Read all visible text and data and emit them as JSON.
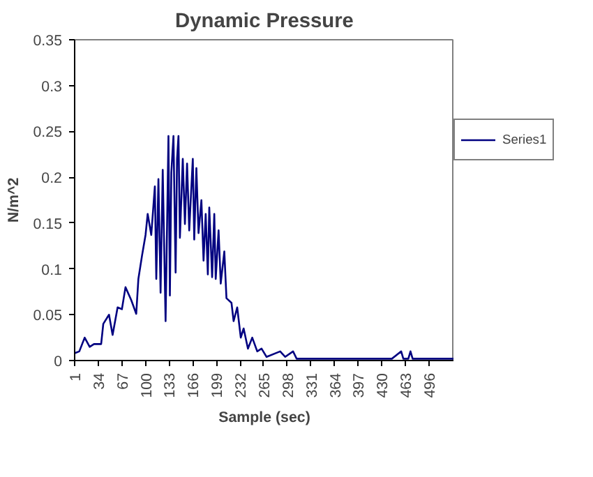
{
  "chart_data": {
    "type": "line",
    "title": "Dynamic Pressure",
    "xlabel": "Sample (sec)",
    "ylabel": "N/m^2",
    "xlim": [
      1,
      531
    ],
    "ylim": [
      0,
      0.35
    ],
    "xticks": [
      1,
      34,
      67,
      100,
      133,
      166,
      199,
      232,
      265,
      298,
      331,
      364,
      397,
      430,
      463,
      496
    ],
    "yticks": [
      0,
      0.05,
      0.1,
      0.15,
      0.2,
      0.25,
      0.3,
      0.35
    ],
    "grid": false,
    "legend": "right",
    "marker": "none",
    "line_style": "solid",
    "x": [
      1,
      7.5,
      15,
      22,
      28,
      38,
      41,
      49,
      54,
      61,
      67,
      72,
      80,
      87,
      90,
      95,
      100,
      103,
      108,
      113,
      115,
      118,
      121,
      124,
      128,
      132,
      134,
      136,
      139,
      142,
      144,
      146,
      148,
      152,
      155,
      158,
      161,
      166,
      168,
      171,
      174,
      178,
      181,
      184,
      187,
      189,
      193,
      196,
      198,
      202,
      205,
      210,
      213,
      220,
      223,
      228,
      233,
      237,
      243,
      249,
      256,
      262,
      269,
      288,
      295,
      306,
      311,
      327,
      444,
      457,
      460,
      467,
      470,
      473,
      531
    ],
    "series": [
      {
        "name": "Series1",
        "color": "#000080",
        "values": [
          0.008,
          0.01,
          0.025,
          0.015,
          0.018,
          0.018,
          0.04,
          0.05,
          0.028,
          0.058,
          0.056,
          0.08,
          0.066,
          0.051,
          0.089,
          0.114,
          0.137,
          0.16,
          0.137,
          0.19,
          0.089,
          0.198,
          0.074,
          0.208,
          0.043,
          0.245,
          0.071,
          0.205,
          0.245,
          0.096,
          0.22,
          0.245,
          0.134,
          0.22,
          0.149,
          0.215,
          0.142,
          0.22,
          0.132,
          0.21,
          0.139,
          0.175,
          0.109,
          0.16,
          0.094,
          0.167,
          0.091,
          0.16,
          0.089,
          0.142,
          0.084,
          0.119,
          0.068,
          0.063,
          0.043,
          0.058,
          0.025,
          0.035,
          0.013,
          0.025,
          0.01,
          0.013,
          0.004,
          0.01,
          0.004,
          0.01,
          0.002,
          0.002,
          0.002,
          0.01,
          0.002,
          0.002,
          0.01,
          0.002,
          0.002
        ]
      }
    ]
  }
}
